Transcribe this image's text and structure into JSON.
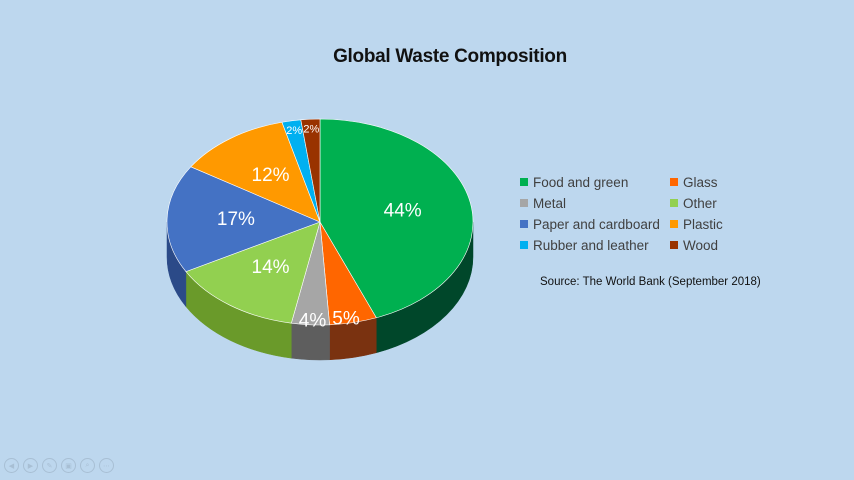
{
  "chart_data": {
    "type": "pie",
    "title": "Global Waste Composition",
    "source": "Source: The World Bank (September 2018)",
    "slices": [
      {
        "name": "Food and green",
        "value": 44,
        "label": "44%",
        "color": "#00b050",
        "side": "#00472a"
      },
      {
        "name": "Glass",
        "value": 5,
        "label": "5%",
        "color": "#ff6600",
        "side": "#7a3210"
      },
      {
        "name": "Metal",
        "value": 4,
        "label": "4%",
        "color": "#a6a6a6",
        "side": "#5e5e5e"
      },
      {
        "name": "Other",
        "value": 14,
        "label": "14%",
        "color": "#92d050",
        "side": "#6a9a2a"
      },
      {
        "name": "Paper and cardboard",
        "value": 17,
        "label": "17%",
        "color": "#4472c4",
        "side": "#2b4a88"
      },
      {
        "name": "Plastic",
        "value": 12,
        "label": "12%",
        "color": "#ff9900",
        "side": "#b06600"
      },
      {
        "name": "Rubber and leather",
        "value": 2,
        "label": "2%",
        "color": "#00b0f0",
        "side": "#0078a8"
      },
      {
        "name": "Wood",
        "value": 2,
        "label": "2%",
        "color": "#993300",
        "side": "#5a1e00"
      }
    ],
    "legend_position": "right"
  },
  "nav": [
    "◀",
    "▶",
    "✎",
    "▣",
    "⌕",
    "⋯"
  ]
}
